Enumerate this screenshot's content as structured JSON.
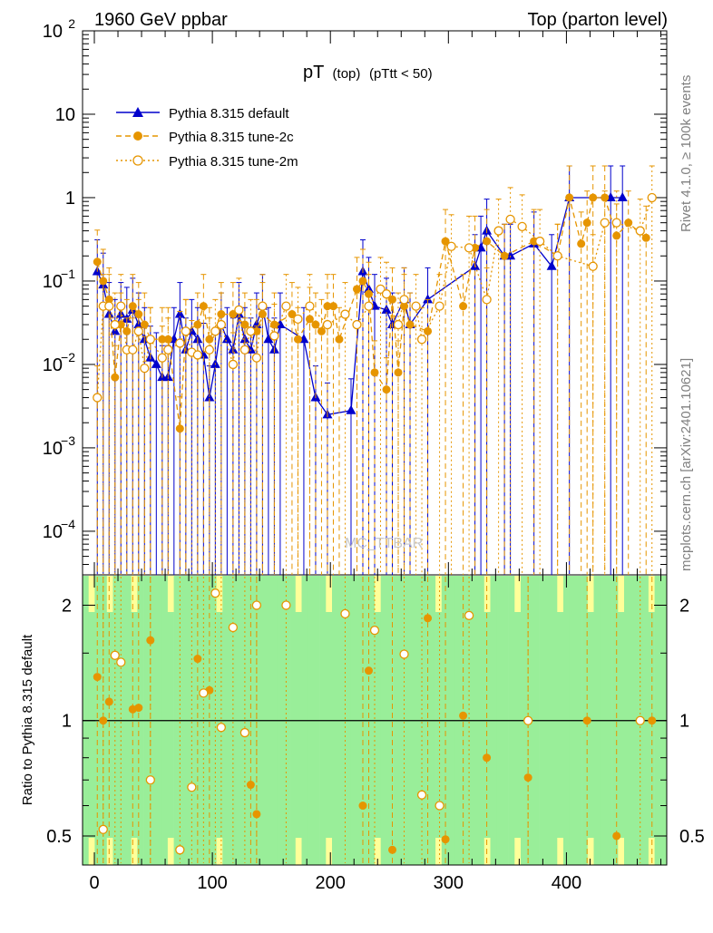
{
  "header": {
    "left": "1960 GeV ppbar",
    "right": "Top (parton level)"
  },
  "side_labels": {
    "rivet": "Rivet 4.1.0, ≥ 100k events",
    "mcplots": "mcplots.cern.ch [arXiv:2401.10621]"
  },
  "watermark": "MC_TTBAR",
  "colors": {
    "default": "#0000cc",
    "tune2c": "#e69500",
    "tune2m": "#e69500",
    "band_green": "#99ee99",
    "band_yellow": "#ffff99"
  },
  "chart_data": [
    {
      "type": "line",
      "panel": "main",
      "title": "pT",
      "title_sub": "(top)",
      "title_cut": "(pTtt < 50)",
      "yscale": "log",
      "xlim": [
        -10,
        485
      ],
      "ylim": [
        3e-05,
        100
      ],
      "x_ticks": [
        0,
        100,
        200,
        300,
        400
      ],
      "y_tick_labels": [
        {
          "value": 100,
          "label": "10",
          "exp": "2"
        },
        {
          "value": 10,
          "label": "10",
          "exp": ""
        },
        {
          "value": 1,
          "label": "1",
          "exp": ""
        },
        {
          "value": 0.1,
          "label": "10",
          "exp": "−1"
        },
        {
          "value": 0.01,
          "label": "10",
          "exp": "−2"
        },
        {
          "value": 0.001,
          "label": "10",
          "exp": "−3"
        },
        {
          "value": 0.0001,
          "label": "10",
          "exp": "−4"
        }
      ],
      "legend": [
        {
          "label": "Pythia 8.315 default",
          "marker": "triangle",
          "style": "solid",
          "color": "#0000cc"
        },
        {
          "label": "Pythia 8.315 tune-2c",
          "marker": "circle",
          "style": "dashed",
          "color": "#e69500"
        },
        {
          "label": "Pythia 8.315 tune-2m",
          "marker": "open-circle",
          "style": "dotted",
          "color": "#e69500"
        }
      ],
      "series": [
        {
          "name": "Pythia 8.315 default",
          "x": [
            2.5,
            7.5,
            12.5,
            17.5,
            22.5,
            27.5,
            32.5,
            37.5,
            42.5,
            47.5,
            52.5,
            57.5,
            62.5,
            67.5,
            72.5,
            77.5,
            82.5,
            87.5,
            92.5,
            97.5,
            102.5,
            107.5,
            112.5,
            117.5,
            122.5,
            127.5,
            132.5,
            137.5,
            142.5,
            147.5,
            152.5,
            157.5,
            177.5,
            187.5,
            197.5,
            217.5,
            227.5,
            232.5,
            237.5,
            247.5,
            252.5,
            262.5,
            267.5,
            282.5,
            322.5,
            327.5,
            332.5,
            347.5,
            352.5,
            372.5,
            387.5,
            402.5,
            437.5,
            447.5
          ],
          "values": [
            0.13,
            0.09,
            0.04,
            0.025,
            0.04,
            0.035,
            0.045,
            0.03,
            0.02,
            0.012,
            0.01,
            0.007,
            0.007,
            0.02,
            0.04,
            0.015,
            0.025,
            0.02,
            0.013,
            0.004,
            0.01,
            0.03,
            0.02,
            0.015,
            0.04,
            0.02,
            0.015,
            0.03,
            0.05,
            0.02,
            0.015,
            0.03,
            0.02,
            0.004,
            0.0025,
            0.0028,
            0.13,
            0.08,
            0.05,
            0.045,
            0.03,
            0.06,
            0.03,
            0.06,
            0.15,
            0.25,
            0.4,
            0.2,
            0.2,
            0.28,
            0.15,
            1.0,
            1.0,
            1.0
          ]
        },
        {
          "name": "Pythia 8.315 tune-2c",
          "x": [
            2.5,
            7.5,
            12.5,
            17.5,
            22.5,
            27.5,
            32.5,
            37.5,
            42.5,
            47.5,
            57.5,
            62.5,
            72.5,
            77.5,
            87.5,
            92.5,
            97.5,
            107.5,
            117.5,
            127.5,
            137.5,
            142.5,
            152.5,
            167.5,
            172.5,
            182.5,
            187.5,
            192.5,
            197.5,
            202.5,
            207.5,
            222.5,
            227.5,
            232.5,
            237.5,
            247.5,
            252.5,
            257.5,
            262.5,
            267.5,
            282.5,
            297.5,
            312.5,
            322.5,
            332.5,
            347.5,
            372.5,
            392.5,
            402.5,
            412.5,
            417.5,
            422.5,
            432.5,
            442.5,
            452.5,
            467.5
          ],
          "values": [
            0.17,
            0.1,
            0.06,
            0.007,
            0.03,
            0.025,
            0.05,
            0.04,
            0.03,
            0.02,
            0.02,
            0.02,
            0.0017,
            0.025,
            0.03,
            0.05,
            0.02,
            0.04,
            0.04,
            0.03,
            0.025,
            0.04,
            0.03,
            0.04,
            0.02,
            0.035,
            0.03,
            0.025,
            0.05,
            0.05,
            0.02,
            0.08,
            0.1,
            0.07,
            0.008,
            0.005,
            0.06,
            0.008,
            0.05,
            0.03,
            0.025,
            0.3,
            0.05,
            0.25,
            0.3,
            0.2,
            0.3,
            0.2,
            1.0,
            0.28,
            0.5,
            1.0,
            1.0,
            0.35,
            0.5,
            0.33
          ]
        },
        {
          "name": "Pythia 8.315 tune-2m",
          "x": [
            2.5,
            7.5,
            12.5,
            17.5,
            22.5,
            27.5,
            32.5,
            37.5,
            42.5,
            47.5,
            57.5,
            62.5,
            72.5,
            77.5,
            82.5,
            87.5,
            97.5,
            102.5,
            107.5,
            117.5,
            122.5,
            127.5,
            132.5,
            137.5,
            142.5,
            152.5,
            162.5,
            172.5,
            182.5,
            197.5,
            212.5,
            222.5,
            232.5,
            242.5,
            247.5,
            257.5,
            262.5,
            272.5,
            277.5,
            292.5,
            302.5,
            317.5,
            332.5,
            342.5,
            352.5,
            362.5,
            377.5,
            392.5,
            422.5,
            432.5,
            442.5,
            462.5,
            472.5
          ],
          "values": [
            0.004,
            0.05,
            0.05,
            0.03,
            0.05,
            0.015,
            0.015,
            0.025,
            0.009,
            0.02,
            0.012,
            0.015,
            0.018,
            0.025,
            0.014,
            0.013,
            0.015,
            0.025,
            0.03,
            0.01,
            0.045,
            0.015,
            0.025,
            0.012,
            0.05,
            0.022,
            0.05,
            0.035,
            0.05,
            0.03,
            0.04,
            0.03,
            0.05,
            0.08,
            0.07,
            0.03,
            0.06,
            0.05,
            0.02,
            0.05,
            0.26,
            0.25,
            0.06,
            0.4,
            0.55,
            0.45,
            0.3,
            0.2,
            0.15,
            0.5,
            0.5,
            0.4,
            1.0
          ]
        }
      ]
    },
    {
      "type": "line",
      "panel": "ratio",
      "ylabel": "Ratio to Pythia 8.315 default",
      "yscale": "log",
      "ylim": [
        0.42,
        2.4
      ],
      "y_ticks": [
        0.5,
        1,
        2
      ],
      "y_tick_labels": [
        "0.5",
        "1",
        "2"
      ],
      "x_ticks": [
        0,
        100,
        200,
        300,
        400
      ],
      "x_tick_labels": [
        "0",
        "100",
        "200",
        "300",
        "400"
      ],
      "reference": 1,
      "bands": {
        "green_high": [
          2.4,
          2.4,
          2.4,
          2.4,
          1.9,
          2.4,
          2.4,
          2.4,
          2.4,
          2.4,
          1.9,
          2.4,
          2.4,
          2.4,
          2.4,
          2.0,
          2.4,
          2.4,
          2.4,
          2.4,
          2.4,
          2.2,
          2.4,
          2.4,
          2.4,
          2.4,
          2.4,
          2.4,
          2.4,
          2.4,
          2.4,
          2.4,
          2.4,
          2.4,
          2.4,
          2.4,
          2.4,
          2.4,
          2.4,
          2.4,
          2.4,
          2.4,
          2.4,
          2.4,
          2.2,
          2.4,
          2.4,
          2.4,
          2.4,
          2.4,
          2.4,
          2.4,
          2.4,
          2.4,
          2.4,
          2.4,
          2.4,
          2.4,
          2.4,
          2.4,
          2.4,
          2.4,
          2.4,
          2.4,
          2.4,
          2.4,
          2.4,
          2.4,
          2.4,
          2.4,
          2.4,
          2.4,
          2.4,
          2.4,
          2.4,
          2.4,
          2.4,
          2.4,
          2.4,
          2.4,
          2.4,
          2.4,
          2.4,
          2.4,
          2.4,
          2.4,
          2.4,
          2.4,
          2.4,
          2.4,
          2.4,
          2.4,
          2.4,
          2.4,
          2.4,
          2.4
        ],
        "yellow_cols": [
          1,
          4,
          8,
          14,
          22,
          35,
          40,
          48,
          58,
          66,
          71,
          78,
          83,
          88,
          93
        ]
      },
      "series": [
        {
          "name": "Pythia 8.315 tune-2c",
          "x": [
            2.5,
            7.5,
            12.5,
            32.5,
            37.5,
            47.5,
            87.5,
            97.5,
            132.5,
            137.5,
            227.5,
            232.5,
            252.5,
            282.5,
            297.5,
            312.5,
            332.5,
            367.5,
            417.5,
            442.5,
            472.5
          ],
          "values": [
            1.3,
            1.0,
            1.12,
            1.07,
            1.08,
            1.62,
            1.45,
            1.2,
            0.68,
            0.57,
            0.6,
            1.35,
            0.46,
            1.85,
            0.49,
            1.03,
            0.8,
            0.71,
            1.0,
            0.5,
            1.0
          ]
        },
        {
          "name": "Pythia 8.315 tune-2m",
          "x": [
            7.5,
            17.5,
            22.5,
            47.5,
            72.5,
            82.5,
            92.5,
            102.5,
            107.5,
            117.5,
            127.5,
            137.5,
            162.5,
            212.5,
            237.5,
            262.5,
            277.5,
            292.5,
            317.5,
            367.5,
            462.5
          ],
          "values": [
            0.52,
            1.48,
            1.42,
            0.7,
            0.46,
            0.67,
            1.18,
            2.15,
            0.96,
            1.75,
            0.93,
            2.0,
            2.0,
            1.9,
            1.72,
            1.49,
            0.64,
            0.6,
            1.88,
            1.0,
            1.0
          ]
        }
      ]
    }
  ]
}
